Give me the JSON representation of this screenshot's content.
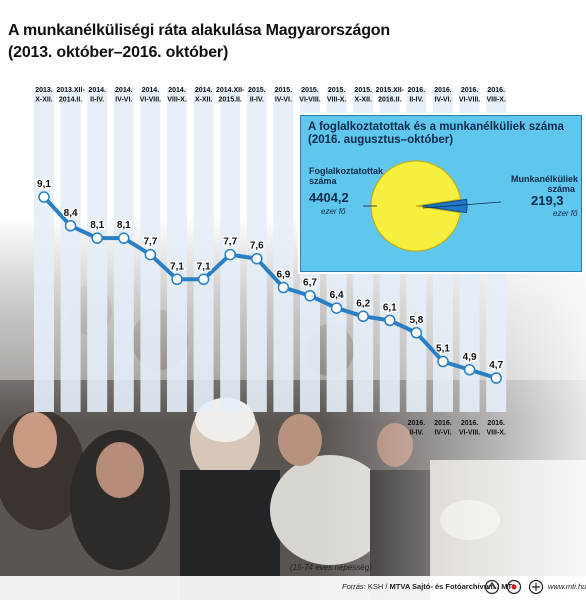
{
  "chart_data": {
    "type": "line",
    "title": "A munkanélküliségi ráta alakulása Magyarországon",
    "subtitle": "(2013. október–2016. október)",
    "note": "(15-74 éves népesség)",
    "categories": [
      [
        "2013.",
        "X-XII."
      ],
      [
        "2013.XII-",
        "2014.II."
      ],
      [
        "2014.",
        "II-IV."
      ],
      [
        "2014.",
        "IV-VI."
      ],
      [
        "2014.",
        "VI-VIII."
      ],
      [
        "2014.",
        "VIII-X."
      ],
      [
        "2014.",
        "X-XII."
      ],
      [
        "2014.XII-",
        "2015.II."
      ],
      [
        "2015.",
        "II-IV."
      ],
      [
        "2015.",
        "IV-VI."
      ],
      [
        "2015.",
        "VI-VIII."
      ],
      [
        "2015.",
        "VIII-X."
      ],
      [
        "2015.",
        "X-XII."
      ],
      [
        "2015.XII-",
        "2016.II."
      ],
      [
        "2016.",
        "II-IV."
      ],
      [
        "2016.",
        "IV-VI."
      ],
      [
        "2016.",
        "VI-VIII."
      ],
      [
        "2016.",
        "VIII-X."
      ]
    ],
    "values": [
      9.1,
      8.4,
      8.1,
      8.1,
      7.7,
      7.1,
      7.1,
      7.7,
      7.6,
      6.9,
      6.7,
      6.4,
      6.2,
      6.1,
      5.8,
      5.1,
      4.9,
      4.7
    ],
    "value_labels": [
      "9,1",
      "8,4",
      "8,1",
      "8,1",
      "7,7",
      "7,1",
      "7,1",
      "7,7",
      "7,6",
      "6,9",
      "6,7",
      "6,4",
      "6,2",
      "6,1",
      "5,8",
      "5,1",
      "4,9",
      "4,7"
    ],
    "bottom_labels": [
      {
        "index": 14,
        "text": [
          "2016.",
          "II-IV."
        ]
      },
      {
        "index": 15,
        "text": [
          "2016.",
          "IV-VI."
        ]
      },
      {
        "index": 16,
        "text": [
          "2016.",
          "VI-VIII."
        ]
      },
      {
        "index": 17,
        "text": [
          "2016.",
          "VIII-X."
        ]
      }
    ],
    "ylim": [
      4.5,
      9.4
    ],
    "colors": {
      "line": "#2a7fc4",
      "column": "#e4eef8",
      "marker_fill": "#ffffff",
      "marker_stroke": "#2a7fc4"
    }
  },
  "inset": {
    "title": "A foglalkoztatottak és a munkanélküliek száma (2016. augusztus–október)",
    "employed": {
      "label_line1": "Foglalkoztatottak",
      "label_line2": "száma",
      "value": 4404.2,
      "value_text": "4404,2",
      "unit": "ezer fő",
      "color": "#f7ef3d"
    },
    "unemployed": {
      "label_line1": "Munkanélküliek",
      "label_line2": "száma",
      "value": 219.3,
      "value_text": "219,3",
      "unit": "ezer fő",
      "color": "#1f78c8"
    }
  },
  "footer": {
    "source_prefix": "Forrás:",
    "source_ksh": "KSH",
    "source_mtva": "MTVA Sajtó- és Fotóarchívum",
    "source_mti": "MTI",
    "url": "www.mti.hu"
  }
}
